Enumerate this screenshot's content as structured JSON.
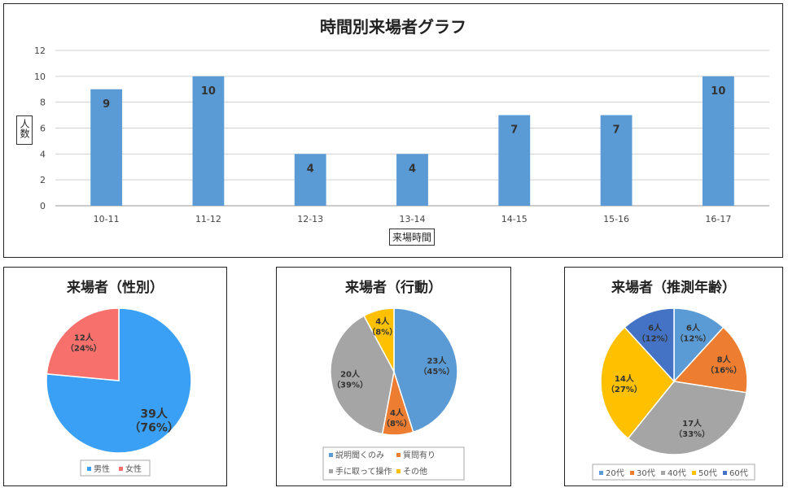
{
  "chart_data": [
    {
      "type": "bar",
      "title": "時間別来場者グラフ",
      "xlabel": "来場時間",
      "ylabel": "人数",
      "categories": [
        "10-11",
        "11-12",
        "12-13",
        "13-14",
        "14-15",
        "15-16",
        "16-17"
      ],
      "values": [
        9,
        10,
        4,
        4,
        7,
        7,
        10
      ],
      "ylim": [
        0,
        12
      ],
      "yticks": [
        0,
        2,
        4,
        6,
        8,
        10,
        12
      ],
      "grid": true,
      "color": "#5b9bd5"
    },
    {
      "type": "pie",
      "title": "来場者（性別）",
      "labels": [
        "男性",
        "女性"
      ],
      "values": [
        39,
        12
      ],
      "data_labels": [
        [
          "39人",
          "（76%）"
        ],
        [
          "12人",
          "（24%）"
        ]
      ],
      "colors": [
        "#3aa0f5",
        "#f8706b"
      ],
      "legend": "bottom"
    },
    {
      "type": "pie",
      "title": "来場者（行動）",
      "labels": [
        "説明聞くのみ",
        "質問有り",
        "手に取って操作",
        "その他"
      ],
      "values": [
        23,
        4,
        20,
        4
      ],
      "data_labels": [
        [
          "23人",
          "（45%）"
        ],
        [
          "4人",
          "（8%）"
        ],
        [
          "20人",
          "（39%）"
        ],
        [
          "4人",
          "（8%）"
        ]
      ],
      "colors": [
        "#5b9bd5",
        "#ed7d31",
        "#a5a5a5",
        "#ffc000"
      ],
      "legend": "bottom"
    },
    {
      "type": "pie",
      "title": "来場者（推測年齢）",
      "labels": [
        "20代",
        "30代",
        "40代",
        "50代",
        "60代"
      ],
      "values": [
        6,
        8,
        17,
        14,
        6
      ],
      "data_labels": [
        [
          "6人",
          "（12%）"
        ],
        [
          "8人",
          "（16%）"
        ],
        [
          "17人",
          "（33%）"
        ],
        [
          "14人",
          "（27%）"
        ],
        [
          "6人",
          "（12%）"
        ]
      ],
      "colors": [
        "#5b9bd5",
        "#ed7d31",
        "#a5a5a5",
        "#ffc000",
        "#4472c4"
      ],
      "legend": "bottom"
    }
  ]
}
